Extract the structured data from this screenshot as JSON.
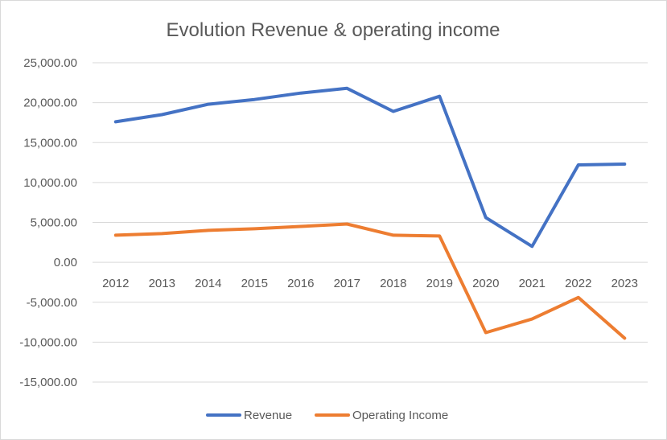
{
  "chart_data": {
    "type": "line",
    "title": "Evolution Revenue & operating income",
    "xlabel": "",
    "ylabel": "",
    "categories": [
      "2012",
      "2013",
      "2014",
      "2015",
      "2016",
      "2017",
      "2018",
      "2019",
      "2020",
      "2021",
      "2022",
      "2023"
    ],
    "ylim": [
      -15000,
      25000
    ],
    "yticks": [
      25000,
      20000,
      15000,
      10000,
      5000,
      0,
      -5000,
      -10000,
      -15000
    ],
    "ytick_labels": [
      "25,000.00",
      "20,000.00",
      "15,000.00",
      "10,000.00",
      "5,000.00",
      "0.00",
      "-5,000.00",
      "-10,000.00",
      "-15,000.00"
    ],
    "grid": true,
    "legend_position": "bottom",
    "series": [
      {
        "name": "Revenue",
        "color": "#4472C4",
        "values": [
          17600,
          18500,
          19800,
          20400,
          21200,
          21800,
          18900,
          20800,
          5600,
          2000,
          12200,
          12300
        ]
      },
      {
        "name": "Operating Income",
        "color": "#ED7D31",
        "values": [
          3400,
          3600,
          4000,
          4200,
          4500,
          4800,
          3400,
          3300,
          -8800,
          -7100,
          -4400,
          -9500
        ]
      }
    ]
  }
}
